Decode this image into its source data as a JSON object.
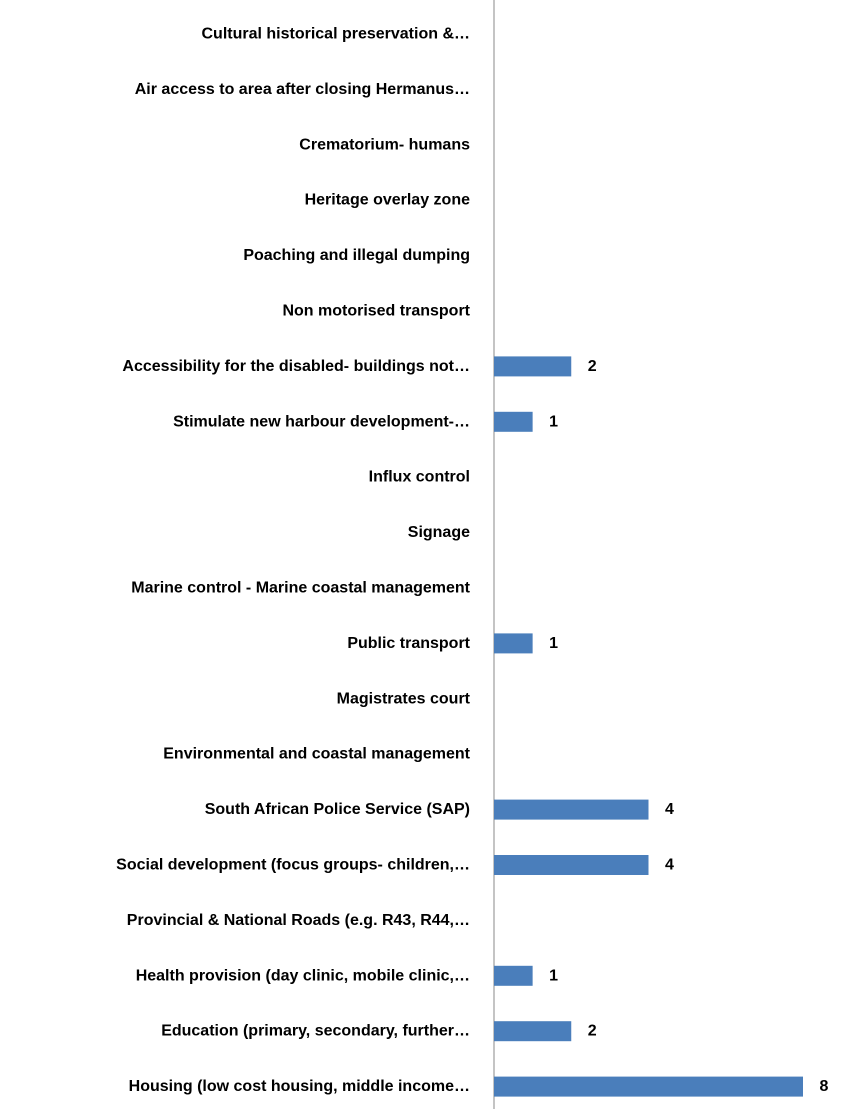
{
  "chart_data": {
    "type": "bar",
    "orientation": "horizontal",
    "title": "",
    "xlabel": "",
    "ylabel": "",
    "xlim": [
      0,
      8
    ],
    "grid": false,
    "legend": "none",
    "bar_color": "#4a7ebb",
    "categories": [
      "Cultural historical preservation &…",
      "Air access to area after closing Hermanus…",
      "Crematorium- humans",
      "Heritage overlay zone",
      "Poaching and illegal dumping",
      "Non motorised transport",
      "Accessibility for the disabled- buildings not…",
      "Stimulate new harbour development-…",
      "Influx control",
      "Signage",
      "Marine control - Marine coastal management",
      "Public transport",
      "Magistrates court",
      "Environmental and coastal management",
      "South African Police Service (SAP)",
      "Social development (focus groups- children,…",
      "Provincial  & National Roads (e.g. R43, R44,…",
      "Health provision (day clinic, mobile clinic,…",
      "Education (primary, secondary, further…",
      "Housing (low cost housing, middle income…"
    ],
    "values": [
      0,
      0,
      0,
      0,
      0,
      0,
      2,
      1,
      0,
      0,
      0,
      1,
      0,
      0,
      4,
      4,
      0,
      1,
      2,
      8
    ],
    "data_labels": [
      "",
      "",
      "",
      "",
      "",
      "",
      "2",
      "1",
      "",
      "",
      "",
      "1",
      "",
      "",
      "4",
      "4",
      "",
      "1",
      "2",
      "8"
    ]
  }
}
